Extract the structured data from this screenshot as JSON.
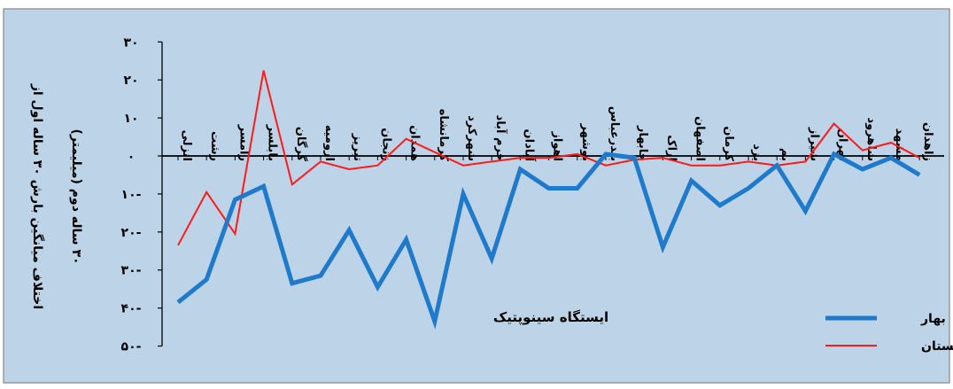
{
  "chart_data": {
    "type": "line",
    "xlabel": "ایستگاه سینوپتیک",
    "ylabel_line1": "اختلاف میانگین بارش ۳۰ ساله اول از",
    "ylabel_line2": "۳۰ ساله دوم (میلیمتر)",
    "ylim": [
      -50,
      30
    ],
    "y_ticks": [
      {
        "value": 30,
        "label": "۳۰"
      },
      {
        "value": 20,
        "label": "۲۰"
      },
      {
        "value": 10,
        "label": "۱۰"
      },
      {
        "value": 0,
        "label": "۰"
      },
      {
        "value": -10,
        "label": "۱۰-"
      },
      {
        "value": -20,
        "label": "۲۰-"
      },
      {
        "value": -30,
        "label": "۳۰-"
      },
      {
        "value": -40,
        "label": "۴۰-"
      },
      {
        "value": -50,
        "label": "۵۰-"
      }
    ],
    "categories": [
      "انزلی",
      "رشت",
      "رامسر",
      "بابلسر",
      "گرگان",
      "ارومیه",
      "تبریز",
      "زنجان",
      "همدان",
      "کرمانشاه",
      "شهرکرد",
      "خرم آباد",
      "آبادان",
      "اهواز",
      "بوشهر",
      "بندرعباس",
      "چابهار",
      "اراک",
      "اصفهان",
      "کرمان",
      "یزد",
      "بم",
      "شیراز",
      "تهران",
      "شاهرود",
      "مشهد",
      "زاهدان"
    ],
    "series": [
      {
        "name": "بهار",
        "color": "#1f7acb",
        "values": [
          -38.5,
          -32.5,
          -11.5,
          -8,
          -33.5,
          -31.5,
          -19.5,
          -34.5,
          -22,
          -43.5,
          -10,
          -27,
          -3.5,
          -8.5,
          -8.5,
          0.5,
          -0.5,
          -24,
          -6.5,
          -13,
          -8.5,
          -2.5,
          -14.5,
          0.5,
          -3.5,
          -0.5,
          -5
        ]
      },
      {
        "name": "تابستان",
        "color": "#ff1a1a",
        "values": [
          -23.5,
          -9.5,
          -20.5,
          22.5,
          -7.5,
          -1.5,
          -3.5,
          -2.5,
          4.5,
          1,
          -2.5,
          -1.5,
          -0.5,
          -0.5,
          0.5,
          -2.5,
          -1,
          -0.5,
          -2.5,
          -2.5,
          -1.5,
          -2.5,
          -1.5,
          8.5,
          1.5,
          3.5,
          -0.5
        ]
      }
    ],
    "legend_position": "bottom-right",
    "grid": false
  },
  "colors": {
    "plot_background": "#bdd4e8",
    "border": "#9a9a9a",
    "axis": "#000000"
  }
}
